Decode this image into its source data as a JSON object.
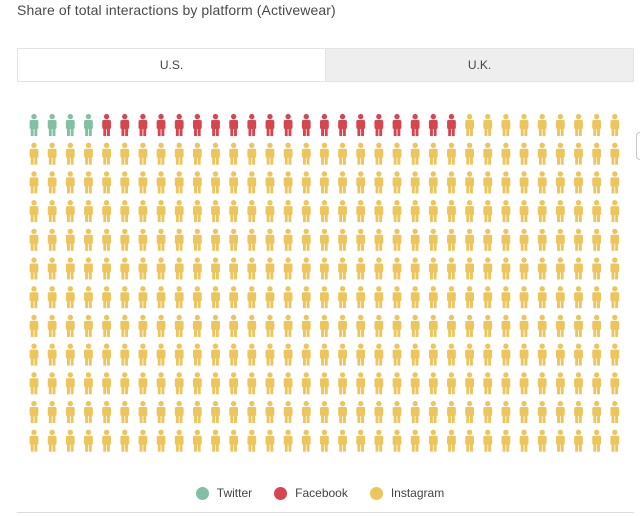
{
  "title": "Share of total interactions by platform (Activewear)",
  "tabs": [
    {
      "label": "U.S.",
      "active": true
    },
    {
      "label": "U.K.",
      "active": false
    }
  ],
  "chart_data": {
    "type": "waffle",
    "unit": "person-icon",
    "rows": 12,
    "columns": 33,
    "series": [
      {
        "name": "Twitter",
        "count": 4,
        "color": "#82bfa5"
      },
      {
        "name": "Facebook",
        "count": 20,
        "color": "#d5464f"
      },
      {
        "name": "Instagram",
        "count": 372,
        "color": "#ecc55c"
      }
    ],
    "legend_position": "bottom-center"
  },
  "legend": [
    {
      "label": "Twitter",
      "color": "#82bfa5"
    },
    {
      "label": "Facebook",
      "color": "#d5464f"
    },
    {
      "label": "Instagram",
      "color": "#ecc55c"
    }
  ]
}
